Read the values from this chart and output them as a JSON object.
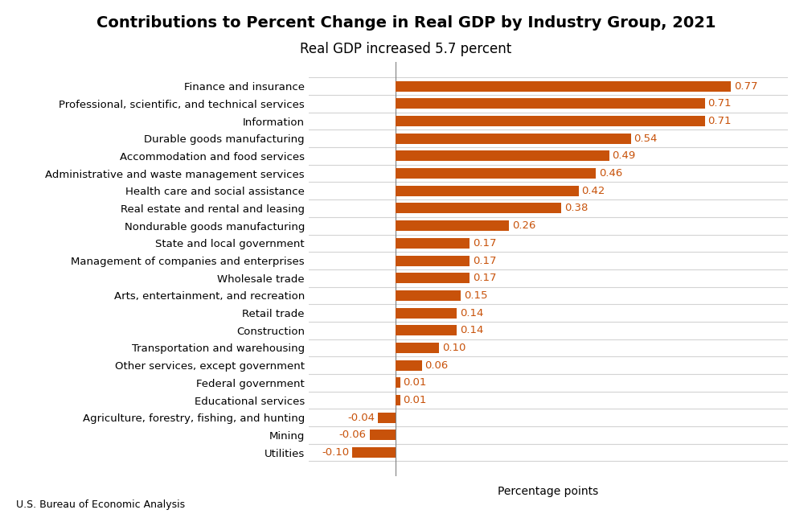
{
  "title": "Contributions to Percent Change in Real GDP by Industry Group, 2021",
  "subtitle": "Real GDP increased 5.7 percent",
  "xlabel": "Percentage points",
  "footnote": "U.S. Bureau of Economic Analysis",
  "categories": [
    "Finance and insurance",
    "Professional, scientific, and technical services",
    "Information",
    "Durable goods manufacturing",
    "Accommodation and food services",
    "Administrative and waste management services",
    "Health care and social assistance",
    "Real estate and rental and leasing",
    "Nondurable goods manufacturing",
    "State and local government",
    "Management of companies and enterprises",
    "Wholesale trade",
    "Arts, entertainment, and recreation",
    "Retail trade",
    "Construction",
    "Transportation and warehousing",
    "Other services, except government",
    "Federal government",
    "Educational services",
    "Agriculture, forestry, fishing, and hunting",
    "Mining",
    "Utilities"
  ],
  "values": [
    0.77,
    0.71,
    0.71,
    0.54,
    0.49,
    0.46,
    0.42,
    0.38,
    0.26,
    0.17,
    0.17,
    0.17,
    0.15,
    0.14,
    0.14,
    0.1,
    0.06,
    0.01,
    0.01,
    -0.04,
    -0.06,
    -0.1
  ],
  "bar_color": "#C8520A",
  "background_color": "#FFFFFF",
  "title_fontsize": 14,
  "subtitle_fontsize": 12,
  "label_fontsize": 9.5,
  "tick_fontsize": 9.5,
  "xlabel_fontsize": 10,
  "xlim": [
    -0.2,
    0.9
  ]
}
